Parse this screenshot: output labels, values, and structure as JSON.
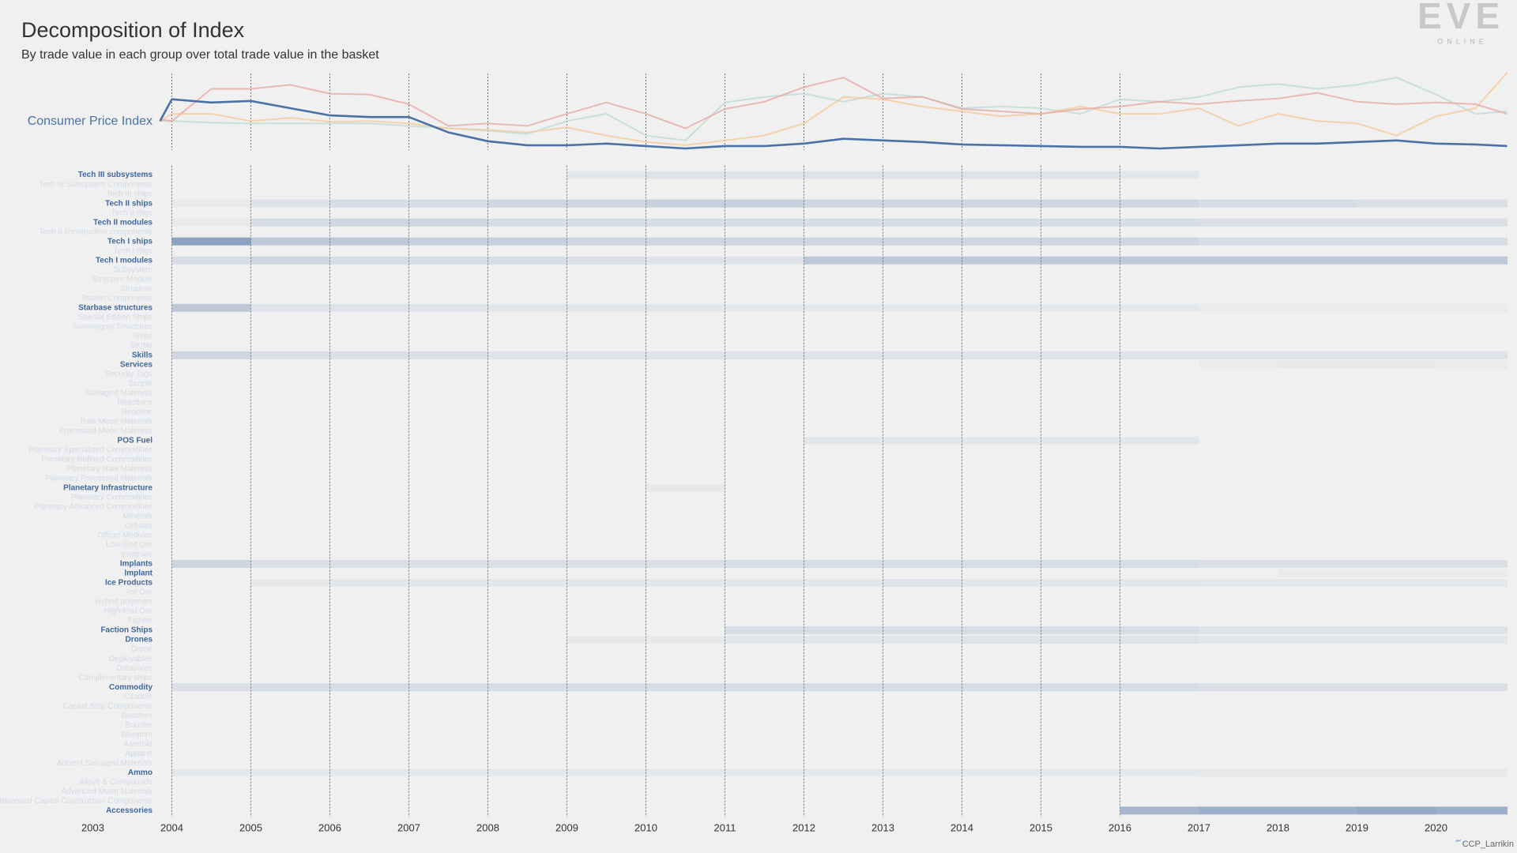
{
  "chart_data": [
    {
      "type": "line",
      "title": "Decomposition of Index",
      "subtitle": "By trade value in each group over total trade value in the basket",
      "x": [
        2003.85,
        2004,
        2004.5,
        2005,
        2005.5,
        2006,
        2006.5,
        2007,
        2007.5,
        2008,
        2008.5,
        2009,
        2009.5,
        2010,
        2010.5,
        2011,
        2011.5,
        2012,
        2012.5,
        2013,
        2013.5,
        2014,
        2014.5,
        2015,
        2015.5,
        2016,
        2016.5,
        2017,
        2017.5,
        2018,
        2018.5,
        2019,
        2019.5,
        2020,
        2020.5,
        2020.9
      ],
      "series": [
        {
          "name": "Consumer Price Index",
          "color": "#4a72a8",
          "values": [
            36,
            63,
            59,
            61,
            52,
            43,
            41,
            41,
            22,
            11,
            6,
            6,
            8,
            5,
            2,
            5,
            5,
            8,
            14,
            12,
            10,
            7,
            6,
            5,
            4,
            4,
            2,
            4,
            6,
            8,
            8,
            10,
            12,
            8,
            7,
            5
          ]
        },
        {
          "color": "#e8a5a0",
          "values": [
            38,
            36,
            76,
            76,
            81,
            70,
            69,
            57,
            30,
            33,
            30,
            45,
            59,
            45,
            27,
            51,
            60,
            78,
            90,
            64,
            66,
            51,
            48,
            45,
            51,
            54,
            60,
            57,
            61,
            64,
            71,
            60,
            57,
            59,
            57,
            45
          ]
        },
        {
          "color": "#f5c895",
          "values": [
            36,
            45,
            45,
            36,
            40,
            35,
            36,
            33,
            27,
            25,
            22,
            28,
            18,
            10,
            6,
            12,
            18,
            33,
            66,
            63,
            54,
            48,
            42,
            45,
            54,
            45,
            45,
            52,
            30,
            45,
            36,
            33,
            18,
            42,
            52,
            96
          ]
        },
        {
          "color": "#bcd9d3",
          "values": [
            36,
            36,
            34,
            33,
            33,
            33,
            33,
            30,
            27,
            24,
            20,
            36,
            45,
            18,
            12,
            59,
            66,
            70,
            60,
            70,
            66,
            52,
            54,
            52,
            45,
            63,
            60,
            66,
            78,
            82,
            76,
            81,
            90,
            69,
            45,
            48
          ]
        }
      ],
      "xlim": [
        2003,
        2021
      ],
      "ylim": [
        0,
        100
      ],
      "xgrid": [
        2004,
        2005,
        2006,
        2007,
        2008,
        2009,
        2010,
        2011,
        2012,
        2013,
        2014,
        2015,
        2016
      ]
    },
    {
      "type": "heatmap",
      "color": "#4a6fa5",
      "x": [
        2004,
        2005,
        2006,
        2007,
        2008,
        2009,
        2010,
        2011,
        2012,
        2013,
        2014,
        2015,
        2016,
        2017,
        2018,
        2019,
        2020
      ],
      "xlim": [
        2003,
        2021
      ],
      "xticks": [
        2003,
        2004,
        2005,
        2006,
        2007,
        2008,
        2009,
        2010,
        2011,
        2012,
        2013,
        2014,
        2015,
        2016,
        2017,
        2018,
        2019,
        2020
      ],
      "xgrid": [
        2004,
        2005,
        2006,
        2007,
        2008,
        2009,
        2010,
        2011,
        2012,
        2013,
        2014,
        2015,
        2016
      ],
      "rows": [
        {
          "label": "Tech III subsystems",
          "values": [
            0,
            0,
            0,
            0,
            0,
            0.08,
            0.1,
            0.1,
            0.1,
            0.1,
            0.1,
            0.1,
            0.08,
            0,
            0,
            0,
            0
          ]
        },
        {
          "label": "Tech III Subsystem Components"
        },
        {
          "label": "Tech III ships"
        },
        {
          "label": "Tech II ships",
          "values": [
            0.05,
            0.1,
            0.15,
            0.15,
            0.2,
            0.2,
            0.25,
            0.25,
            0.2,
            0.2,
            0.2,
            0.2,
            0.2,
            0.15,
            0.15,
            0.12,
            0.12
          ]
        },
        {
          "label": "Tech II Rigs"
        },
        {
          "label": "Tech II modules",
          "values": [
            0.05,
            0.15,
            0.2,
            0.2,
            0.15,
            0.15,
            0.15,
            0.15,
            0.15,
            0.15,
            0.15,
            0.15,
            0.15,
            0.12,
            0.12,
            0.12,
            0.12
          ]
        },
        {
          "label": "Tech II construction components"
        },
        {
          "label": "Tech I ships",
          "values": [
            0.6,
            0.3,
            0.3,
            0.25,
            0.25,
            0.2,
            0.2,
            0.2,
            0.2,
            0.2,
            0.2,
            0.2,
            0.2,
            0.15,
            0.15,
            0.15,
            0.15
          ]
        },
        {
          "label": "Tech I Rigs"
        },
        {
          "label": "Tech I modules",
          "values": [
            0.15,
            0.2,
            0.15,
            0.15,
            0.15,
            0.12,
            0.1,
            0.1,
            0.3,
            0.3,
            0.3,
            0.3,
            0.3,
            0.3,
            0.3,
            0.3,
            0.3
          ]
        },
        {
          "label": "Subsystem"
        },
        {
          "label": "Structure Module"
        },
        {
          "label": "Structure"
        },
        {
          "label": "Station Components"
        },
        {
          "label": "Starbase structures",
          "values": [
            0.3,
            0.1,
            0.1,
            0.1,
            0.08,
            0.08,
            0.08,
            0.06,
            0.06,
            0.06,
            0.06,
            0.06,
            0.06,
            0.04,
            0.04,
            0.04,
            0.04
          ]
        },
        {
          "label": "Special Edition Ships"
        },
        {
          "label": "Sovereignty Structures"
        },
        {
          "label": "Ships"
        },
        {
          "label": "SKINs"
        },
        {
          "label": "Skills",
          "values": [
            0.2,
            0.12,
            0.12,
            0.12,
            0.1,
            0.1,
            0.1,
            0.1,
            0.1,
            0.1,
            0.1,
            0.1,
            0.1,
            0.1,
            0.1,
            0.1,
            0.1
          ]
        },
        {
          "label": "Services",
          "values": [
            0,
            0,
            0,
            0,
            0,
            0,
            0,
            0,
            0,
            0,
            0,
            0,
            0,
            0.04,
            0.05,
            0.05,
            0.04
          ]
        },
        {
          "label": "Security Tags"
        },
        {
          "label": "Scripts"
        },
        {
          "label": "Salvaged Materials"
        },
        {
          "label": "Reactions"
        },
        {
          "label": "Reaction"
        },
        {
          "label": "Raw Moon Materials"
        },
        {
          "label": "Processed Moon Materials"
        },
        {
          "label": "POS Fuel",
          "values": [
            0,
            0,
            0,
            0,
            0,
            0,
            0,
            0,
            0.08,
            0.08,
            0.08,
            0.08,
            0.08,
            0,
            0,
            0,
            0
          ]
        },
        {
          "label": "Planetary Specialized Commodities"
        },
        {
          "label": "Planetary Refined Commodities"
        },
        {
          "label": "Planetary Raw Materials"
        },
        {
          "label": "Planetary Processed Materials"
        },
        {
          "label": "Planetary Infrastructure",
          "values": [
            0,
            0,
            0,
            0,
            0,
            0,
            0.05,
            0,
            0,
            0,
            0,
            0,
            0,
            0,
            0,
            0,
            0
          ]
        },
        {
          "label": "Planetary Commodities"
        },
        {
          "label": "Planetary Advanced Commodities"
        },
        {
          "label": "Minerals"
        },
        {
          "label": "Orbitals"
        },
        {
          "label": "Officer Modules"
        },
        {
          "label": "Low-End Ore"
        },
        {
          "label": "Insignias"
        },
        {
          "label": "Implants",
          "values": [
            0.2,
            0.12,
            0.12,
            0.12,
            0.12,
            0.12,
            0.12,
            0.15,
            0.15,
            0.15,
            0.15,
            0.15,
            0.15,
            0.12,
            0.12,
            0.12,
            0.12
          ]
        },
        {
          "label": "Implant",
          "values": [
            0,
            0,
            0,
            0,
            0,
            0,
            0,
            0,
            0,
            0,
            0,
            0,
            0,
            0,
            0.04,
            0.04,
            0.04
          ]
        },
        {
          "label": "Ice Products",
          "values": [
            0,
            0.05,
            0.08,
            0.08,
            0.08,
            0.08,
            0.08,
            0.08,
            0.08,
            0.1,
            0.08,
            0.08,
            0.08,
            0.06,
            0.06,
            0.06,
            0.06
          ]
        },
        {
          "label": "Ice Ore"
        },
        {
          "label": "Hybrid polymers"
        },
        {
          "label": "High-End Ore"
        },
        {
          "label": "Fighter"
        },
        {
          "label": "Faction Ships",
          "values": [
            0,
            0,
            0,
            0,
            0,
            0,
            0,
            0.15,
            0.15,
            0.15,
            0.15,
            0.15,
            0.15,
            0.1,
            0.1,
            0.1,
            0.1
          ]
        },
        {
          "label": "Drones",
          "values": [
            0,
            0,
            0,
            0,
            0,
            0.05,
            0.05,
            0.08,
            0.08,
            0.08,
            0.1,
            0.1,
            0.1,
            0.08,
            0.08,
            0.08,
            0.08
          ]
        },
        {
          "label": "Drone"
        },
        {
          "label": "Deployables"
        },
        {
          "label": "Datacores"
        },
        {
          "label": "Complimentary ships"
        },
        {
          "label": "Commodity",
          "values": [
            0.12,
            0.15,
            0.15,
            0.15,
            0.15,
            0.15,
            0.15,
            0.15,
            0.15,
            0.15,
            0.15,
            0.15,
            0.15,
            0.12,
            0.12,
            0.12,
            0.12
          ]
        },
        {
          "label": "Citadels"
        },
        {
          "label": "Capital Ship Components"
        },
        {
          "label": "Boosters"
        },
        {
          "label": "Booster"
        },
        {
          "label": "Blueprint"
        },
        {
          "label": "Asteroid"
        },
        {
          "label": "Apparel"
        },
        {
          "label": "Ancient Salvaged Materials"
        },
        {
          "label": "Ammo",
          "values": [
            0.06,
            0.06,
            0.06,
            0.06,
            0.06,
            0.06,
            0.06,
            0.06,
            0.06,
            0.06,
            0.06,
            0.06,
            0.06,
            0.05,
            0.05,
            0.05,
            0.05
          ]
        },
        {
          "label": "Alloys & Compounds"
        },
        {
          "label": "Advanced Moon Materials"
        },
        {
          "label": "Advanced Capital Construction Components"
        },
        {
          "label": "Accessories",
          "values": [
            0,
            0,
            0,
            0,
            0,
            0,
            0,
            0,
            0,
            0,
            0,
            0,
            0.45,
            0.5,
            0.5,
            0.55,
            0.5
          ]
        }
      ]
    }
  ],
  "logo": {
    "text": "EVE",
    "subtext": "ONLINE"
  },
  "credit": "CCP_Larrikin"
}
